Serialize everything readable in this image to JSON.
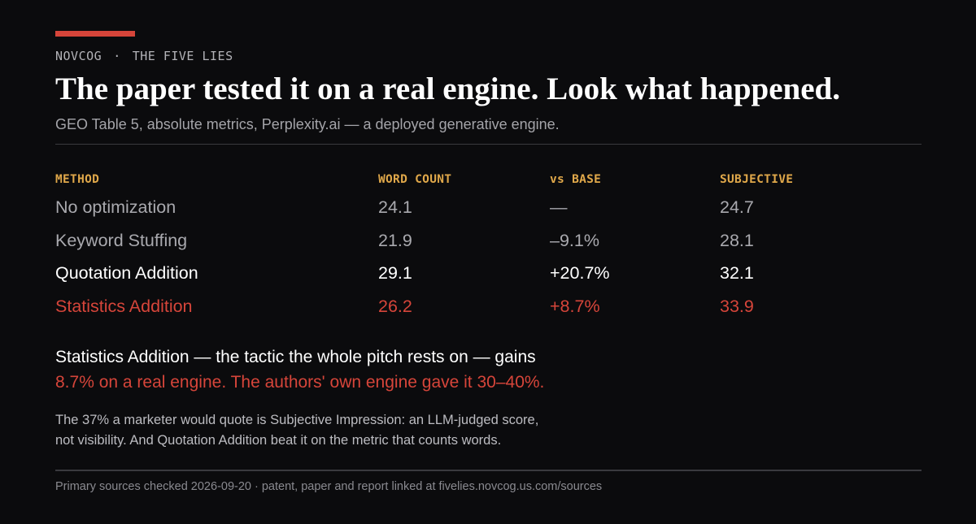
{
  "header": {
    "brand": "NOVCOG",
    "separator": "·",
    "series": "THE FIVE LIES",
    "accent_color": "#d6453a",
    "headline": "The paper tested it on a real engine. Look what happened.",
    "subtitle": "GEO Table 5, absolute metrics, Perplexity.ai — a deployed generative engine."
  },
  "table": {
    "columns": [
      "METHOD",
      "WORD COUNT",
      "vs BASE",
      "SUBJECTIVE"
    ],
    "header_color": "#e0a84a",
    "rows": [
      {
        "method": "No optimization",
        "word_count": "24.1",
        "vs_base": "—",
        "subjective": "24.7"
      },
      {
        "method": "Keyword Stuffing",
        "word_count": "21.9",
        "vs_base": "–9.1%",
        "subjective": "28.1"
      },
      {
        "method": "Quotation Addition",
        "word_count": "29.1",
        "vs_base": "+20.7%",
        "subjective": "32.1"
      },
      {
        "method": "Statistics Addition",
        "word_count": "26.2",
        "vs_base": "+8.7%",
        "subjective": "33.9"
      }
    ]
  },
  "highlight": {
    "line1": "Statistics Addition — the tactic the whole pitch rests on — gains",
    "line2": "8.7% on a real engine. The authors' own engine gave it 30–40%."
  },
  "note": {
    "line1": "The 37% a marketer would quote is Subjective Impression: an LLM-judged score,",
    "line2": "not visibility. And Quotation Addition beat it on the metric that counts words."
  },
  "footer": {
    "text": "Primary sources checked 2026-09-20 · patent, paper and report linked at fivelies.novcog.us.com/sources"
  }
}
